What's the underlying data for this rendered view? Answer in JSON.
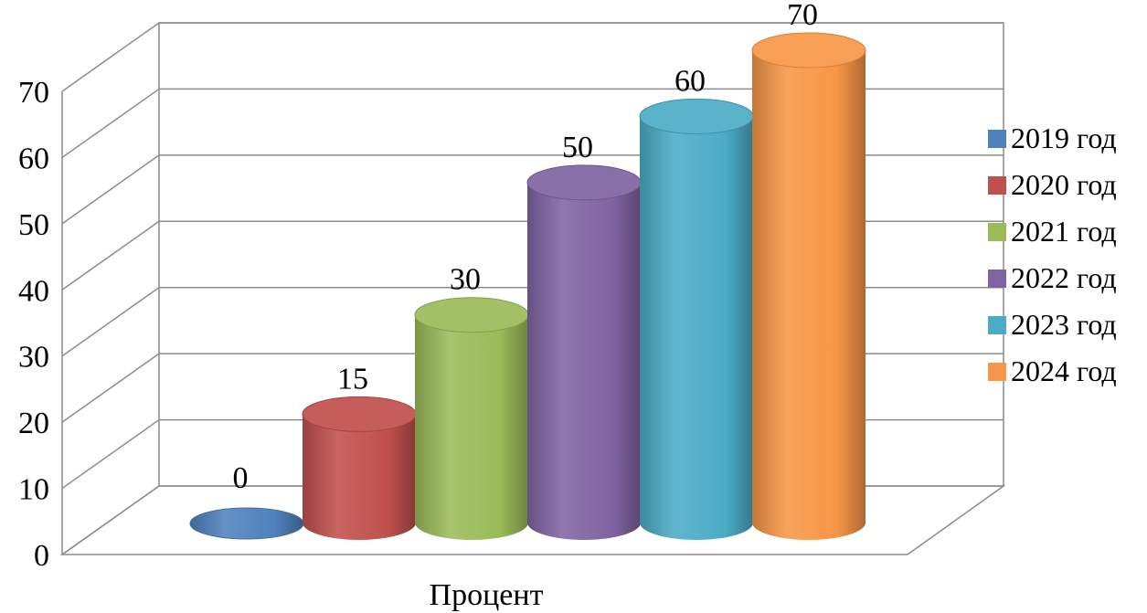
{
  "chart_data": {
    "type": "bar",
    "style": "3d-cylinder",
    "categories": [
      "Процент"
    ],
    "series": [
      {
        "name": "2019 год",
        "values": [
          0
        ],
        "color": "#4f81bd"
      },
      {
        "name": "2020 год",
        "values": [
          15
        ],
        "color": "#c0504d"
      },
      {
        "name": "2021 год",
        "values": [
          30
        ],
        "color": "#9bbb59"
      },
      {
        "name": "2022 год",
        "values": [
          50
        ],
        "color": "#8064a2"
      },
      {
        "name": "2023 год",
        "values": [
          60
        ],
        "color": "#4bacc6"
      },
      {
        "name": "2024 год",
        "values": [
          70
        ],
        "color": "#f79646"
      }
    ],
    "data_labels": [
      "0",
      "15",
      "30",
      "50",
      "60",
      "70"
    ],
    "y_ticks": [
      "0",
      "10",
      "20",
      "30",
      "40",
      "50",
      "60",
      "70"
    ],
    "ylim": [
      0,
      70
    ],
    "grid": true,
    "legend": "right",
    "title": "",
    "xlabel": "",
    "ylabel": ""
  }
}
